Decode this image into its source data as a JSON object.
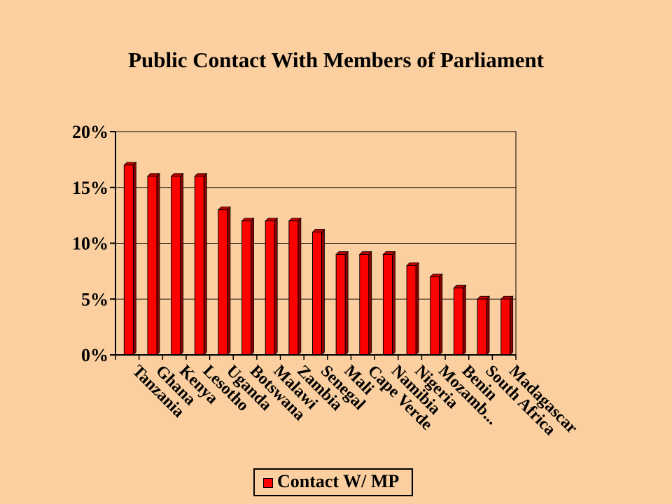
{
  "chart_data": {
    "type": "bar",
    "title": "Public Contact With Members of Parliament",
    "categories": [
      "Tanzania",
      "Ghana",
      "Kenya",
      "Lesotho",
      "Uganda",
      "Botswana",
      "Malawi",
      "Zambia",
      "Senegal",
      "Mali",
      "Cape Verde",
      "Namibia",
      "Nigeria",
      "Mozamb...",
      "Benin",
      "South Africa",
      "Madagascar"
    ],
    "series": [
      {
        "name": "Contact W/ MP",
        "values": [
          17,
          16,
          16,
          16,
          13,
          12,
          12,
          12,
          11,
          9,
          9,
          9,
          8,
          7,
          6,
          5,
          5
        ]
      }
    ],
    "ylim": [
      0,
      20
    ],
    "yticks": [
      "0%",
      "5%",
      "10%",
      "15%",
      "20%"
    ],
    "xlabel": "",
    "ylabel": "",
    "grid": true,
    "legend_position": "bottom",
    "colors": {
      "bar": "#FF0000",
      "bar_side": "#8B0000",
      "bar_top": "#C00000",
      "background": "#FBCF9F",
      "plot_bg": "#FBCF9F",
      "grid": "#000000"
    }
  }
}
